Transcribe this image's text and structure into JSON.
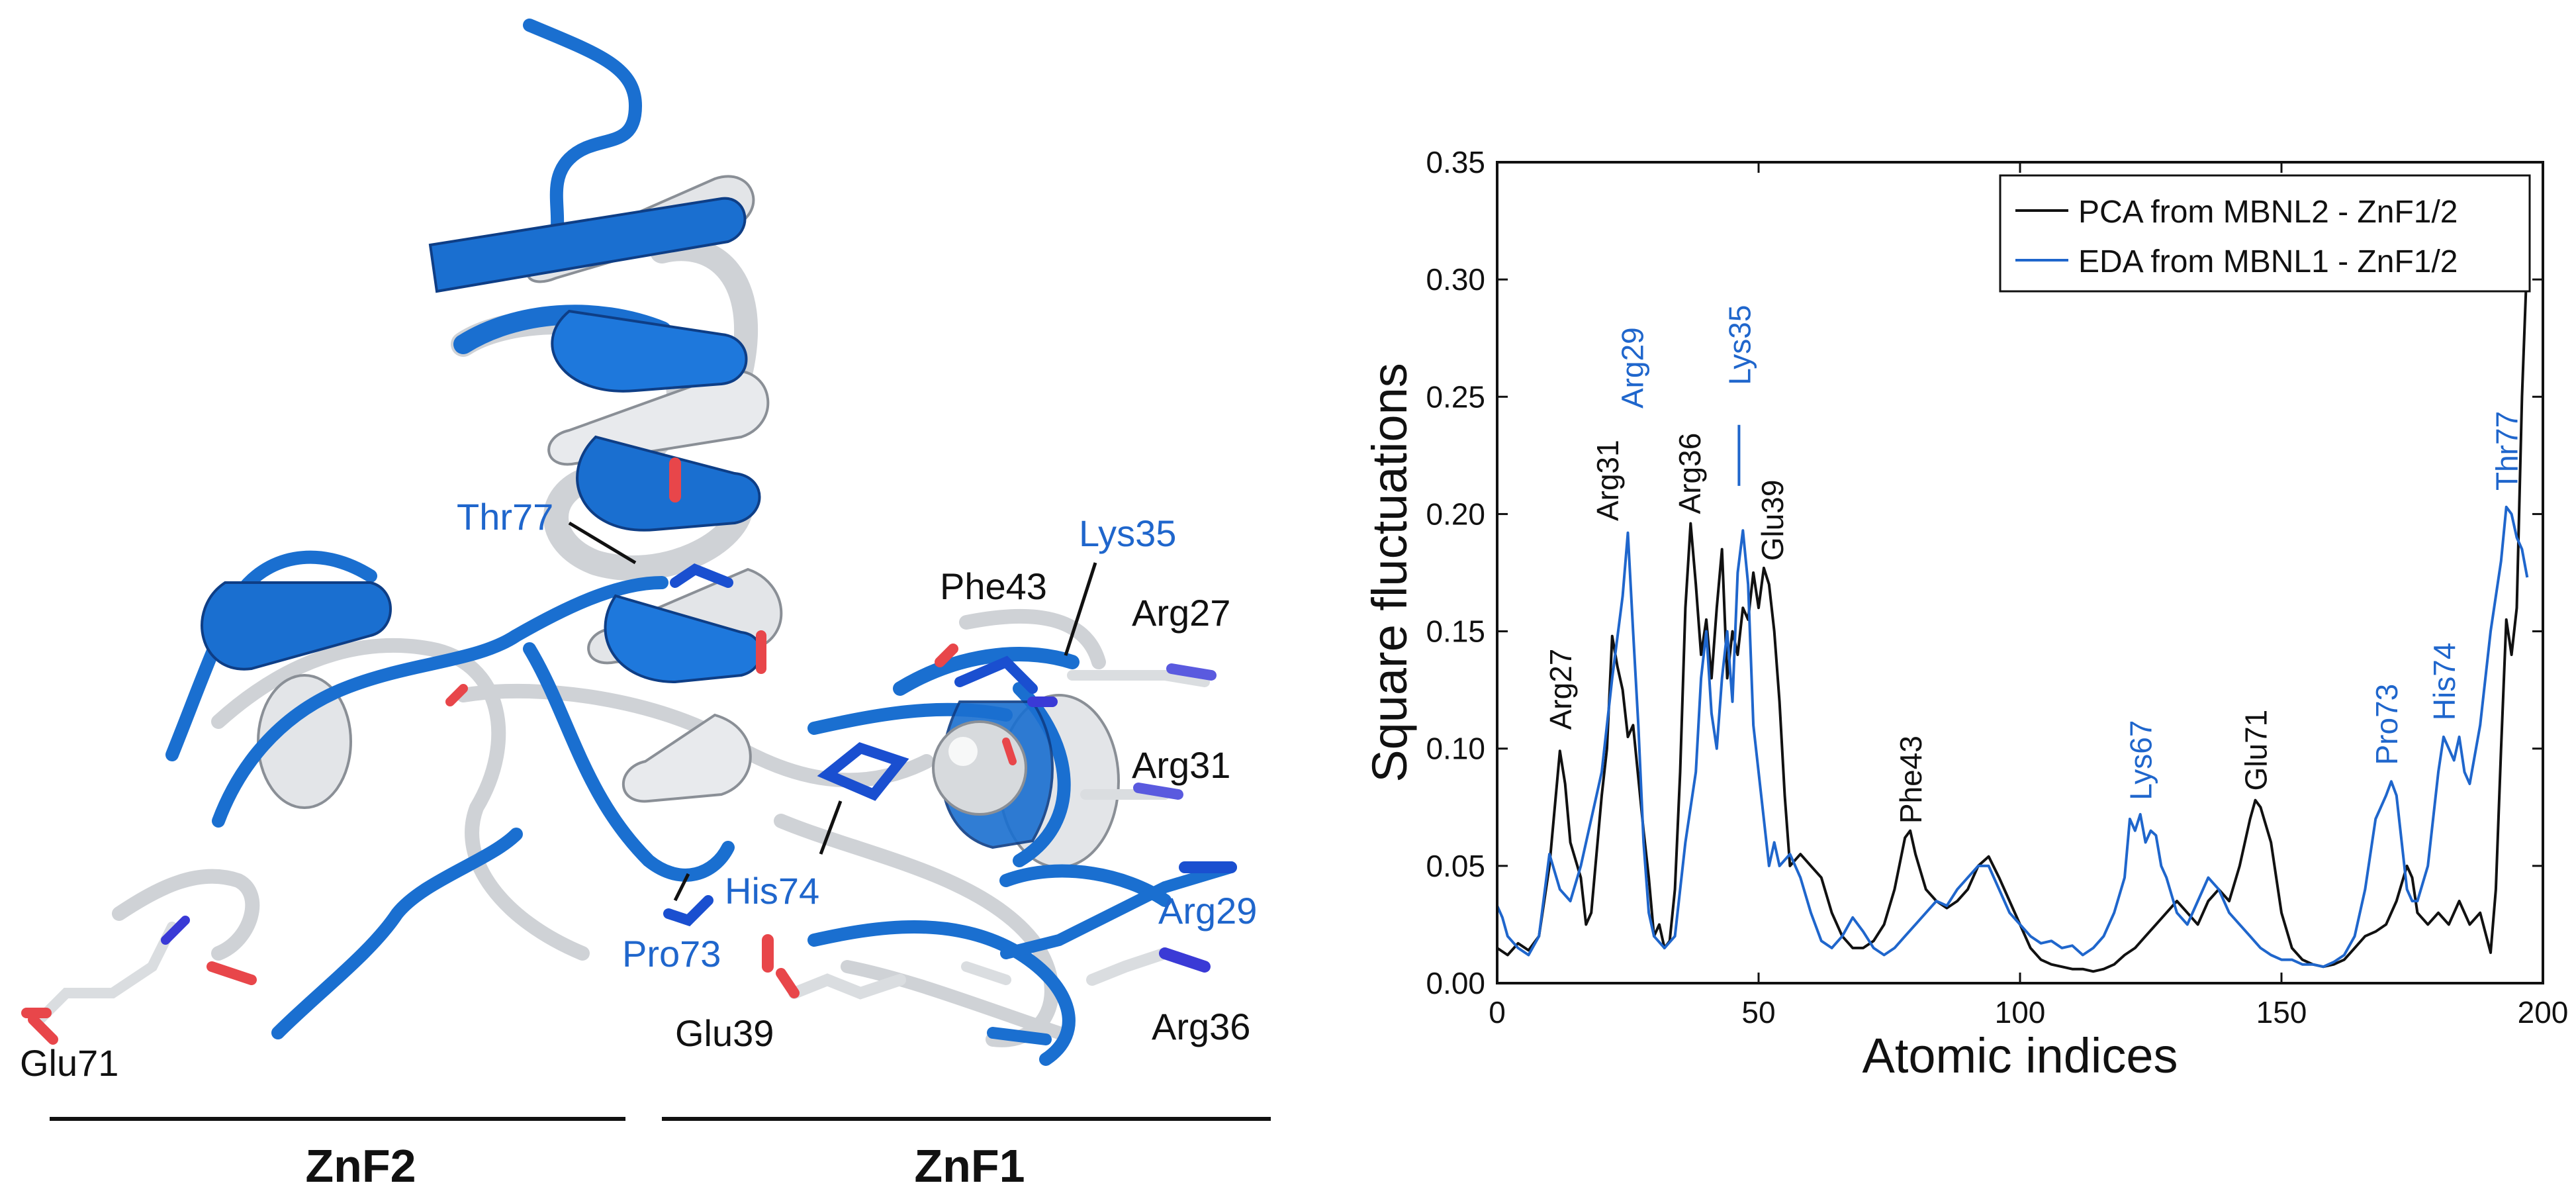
{
  "colors": {
    "black": "#111111",
    "blue": "#1f66cc",
    "ribbon_blue": "#1a6fd0",
    "ribbon_white": "#e3e5e8",
    "oxygen": "#e8464a",
    "nitrogen": "#3a3ad6"
  },
  "structure_panel": {
    "labels": {
      "thr77": "Thr77",
      "lys35": "Lys35",
      "phe43": "Phe43",
      "arg27": "Arg27",
      "arg31": "Arg31",
      "his74": "His74",
      "arg29": "Arg29",
      "pro73": "Pro73",
      "glu39": "Glu39",
      "arg36": "Arg36",
      "glu71": "Glu71"
    },
    "domains": {
      "znf2": "ZnF2",
      "znf1": "ZnF1"
    }
  },
  "chart_data": {
    "type": "line",
    "title": "",
    "xlabel": "Atomic indices",
    "ylabel": "Square fluctuations",
    "xlim": [
      0,
      200
    ],
    "ylim": [
      0,
      0.35
    ],
    "xticks": [
      "0",
      "50",
      "100",
      "150",
      "200"
    ],
    "yticks": [
      "0.00",
      "0.05",
      "0.10",
      "0.15",
      "0.20",
      "0.25",
      "0.30",
      "0.35"
    ],
    "grid": false,
    "legend_position": "top-right",
    "series": [
      {
        "name": "PCA from MBNL2 - ZnF1/2",
        "color": "#111111",
        "points": [
          [
            0,
            0.015
          ],
          [
            2,
            0.012
          ],
          [
            4,
            0.017
          ],
          [
            6,
            0.014
          ],
          [
            8,
            0.02
          ],
          [
            10,
            0.05
          ],
          [
            12,
            0.099
          ],
          [
            13,
            0.085
          ],
          [
            14,
            0.06
          ],
          [
            16,
            0.045
          ],
          [
            17,
            0.025
          ],
          [
            18,
            0.03
          ],
          [
            20,
            0.08
          ],
          [
            21,
            0.1
          ],
          [
            22,
            0.148
          ],
          [
            23,
            0.135
          ],
          [
            24,
            0.125
          ],
          [
            25,
            0.105
          ],
          [
            26,
            0.11
          ],
          [
            28,
            0.065
          ],
          [
            29,
            0.045
          ],
          [
            30,
            0.02
          ],
          [
            31,
            0.025
          ],
          [
            32,
            0.015
          ],
          [
            33,
            0.018
          ],
          [
            34,
            0.04
          ],
          [
            35,
            0.09
          ],
          [
            36,
            0.16
          ],
          [
            37,
            0.196
          ],
          [
            38,
            0.17
          ],
          [
            39,
            0.14
          ],
          [
            40,
            0.155
          ],
          [
            41,
            0.13
          ],
          [
            42,
            0.16
          ],
          [
            43,
            0.185
          ],
          [
            44,
            0.13
          ],
          [
            45,
            0.15
          ],
          [
            46,
            0.14
          ],
          [
            47,
            0.16
          ],
          [
            48,
            0.155
          ],
          [
            49,
            0.175
          ],
          [
            50,
            0.16
          ],
          [
            51,
            0.177
          ],
          [
            52,
            0.17
          ],
          [
            53,
            0.15
          ],
          [
            54,
            0.12
          ],
          [
            55,
            0.08
          ],
          [
            56,
            0.05
          ],
          [
            58,
            0.055
          ],
          [
            60,
            0.05
          ],
          [
            62,
            0.045
          ],
          [
            64,
            0.03
          ],
          [
            66,
            0.02
          ],
          [
            68,
            0.015
          ],
          [
            70,
            0.015
          ],
          [
            72,
            0.018
          ],
          [
            74,
            0.025
          ],
          [
            76,
            0.04
          ],
          [
            78,
            0.062
          ],
          [
            79,
            0.065
          ],
          [
            80,
            0.055
          ],
          [
            82,
            0.04
          ],
          [
            84,
            0.035
          ],
          [
            86,
            0.032
          ],
          [
            88,
            0.035
          ],
          [
            90,
            0.04
          ],
          [
            92,
            0.05
          ],
          [
            94,
            0.054
          ],
          [
            96,
            0.045
          ],
          [
            98,
            0.035
          ],
          [
            100,
            0.025
          ],
          [
            102,
            0.015
          ],
          [
            104,
            0.01
          ],
          [
            106,
            0.008
          ],
          [
            108,
            0.007
          ],
          [
            110,
            0.006
          ],
          [
            112,
            0.006
          ],
          [
            114,
            0.005
          ],
          [
            116,
            0.006
          ],
          [
            118,
            0.008
          ],
          [
            120,
            0.012
          ],
          [
            122,
            0.015
          ],
          [
            124,
            0.02
          ],
          [
            126,
            0.025
          ],
          [
            128,
            0.03
          ],
          [
            130,
            0.035
          ],
          [
            132,
            0.03
          ],
          [
            134,
            0.025
          ],
          [
            136,
            0.035
          ],
          [
            138,
            0.04
          ],
          [
            140,
            0.035
          ],
          [
            142,
            0.05
          ],
          [
            144,
            0.07
          ],
          [
            145,
            0.078
          ],
          [
            146,
            0.075
          ],
          [
            148,
            0.06
          ],
          [
            150,
            0.03
          ],
          [
            152,
            0.015
          ],
          [
            154,
            0.01
          ],
          [
            156,
            0.008
          ],
          [
            158,
            0.007
          ],
          [
            160,
            0.008
          ],
          [
            162,
            0.01
          ],
          [
            164,
            0.015
          ],
          [
            166,
            0.02
          ],
          [
            168,
            0.022
          ],
          [
            170,
            0.025
          ],
          [
            172,
            0.035
          ],
          [
            174,
            0.05
          ],
          [
            175,
            0.045
          ],
          [
            176,
            0.03
          ],
          [
            178,
            0.025
          ],
          [
            180,
            0.03
          ],
          [
            182,
            0.025
          ],
          [
            184,
            0.035
          ],
          [
            186,
            0.025
          ],
          [
            188,
            0.03
          ],
          [
            190,
            0.013
          ],
          [
            191,
            0.04
          ],
          [
            192,
            0.1
          ],
          [
            193,
            0.155
          ],
          [
            194,
            0.14
          ],
          [
            195,
            0.16
          ],
          [
            196,
            0.25
          ],
          [
            197,
            0.31
          ]
        ]
      },
      {
        "name": "EDA from MBNL1 - ZnF1/2",
        "color": "#1f66cc",
        "points": [
          [
            0,
            0.033
          ],
          [
            1,
            0.028
          ],
          [
            2,
            0.02
          ],
          [
            4,
            0.015
          ],
          [
            6,
            0.012
          ],
          [
            8,
            0.02
          ],
          [
            10,
            0.055
          ],
          [
            12,
            0.04
          ],
          [
            14,
            0.035
          ],
          [
            16,
            0.05
          ],
          [
            18,
            0.07
          ],
          [
            20,
            0.09
          ],
          [
            22,
            0.13
          ],
          [
            24,
            0.165
          ],
          [
            25,
            0.192
          ],
          [
            26,
            0.15
          ],
          [
            27,
            0.11
          ],
          [
            28,
            0.06
          ],
          [
            29,
            0.03
          ],
          [
            30,
            0.02
          ],
          [
            32,
            0.015
          ],
          [
            34,
            0.02
          ],
          [
            36,
            0.06
          ],
          [
            38,
            0.09
          ],
          [
            39,
            0.13
          ],
          [
            40,
            0.15
          ],
          [
            41,
            0.115
          ],
          [
            42,
            0.1
          ],
          [
            43,
            0.13
          ],
          [
            44,
            0.15
          ],
          [
            45,
            0.12
          ],
          [
            46,
            0.175
          ],
          [
            47,
            0.193
          ],
          [
            48,
            0.17
          ],
          [
            49,
            0.11
          ],
          [
            50,
            0.09
          ],
          [
            51,
            0.07
          ],
          [
            52,
            0.05
          ],
          [
            53,
            0.06
          ],
          [
            54,
            0.05
          ],
          [
            56,
            0.055
          ],
          [
            58,
            0.045
          ],
          [
            60,
            0.03
          ],
          [
            62,
            0.018
          ],
          [
            64,
            0.015
          ],
          [
            66,
            0.02
          ],
          [
            68,
            0.028
          ],
          [
            70,
            0.022
          ],
          [
            72,
            0.015
          ],
          [
            74,
            0.012
          ],
          [
            76,
            0.015
          ],
          [
            78,
            0.02
          ],
          [
            80,
            0.025
          ],
          [
            82,
            0.03
          ],
          [
            84,
            0.035
          ],
          [
            86,
            0.033
          ],
          [
            88,
            0.04
          ],
          [
            90,
            0.045
          ],
          [
            92,
            0.05
          ],
          [
            94,
            0.05
          ],
          [
            96,
            0.04
          ],
          [
            98,
            0.03
          ],
          [
            100,
            0.025
          ],
          [
            102,
            0.02
          ],
          [
            104,
            0.017
          ],
          [
            106,
            0.018
          ],
          [
            108,
            0.015
          ],
          [
            110,
            0.016
          ],
          [
            112,
            0.012
          ],
          [
            114,
            0.015
          ],
          [
            116,
            0.02
          ],
          [
            118,
            0.03
          ],
          [
            120,
            0.045
          ],
          [
            121,
            0.07
          ],
          [
            122,
            0.065
          ],
          [
            123,
            0.072
          ],
          [
            124,
            0.06
          ],
          [
            125,
            0.065
          ],
          [
            126,
            0.063
          ],
          [
            127,
            0.05
          ],
          [
            128,
            0.045
          ],
          [
            130,
            0.03
          ],
          [
            132,
            0.025
          ],
          [
            134,
            0.035
          ],
          [
            136,
            0.045
          ],
          [
            138,
            0.04
          ],
          [
            140,
            0.03
          ],
          [
            142,
            0.025
          ],
          [
            144,
            0.02
          ],
          [
            146,
            0.015
          ],
          [
            148,
            0.012
          ],
          [
            150,
            0.01
          ],
          [
            152,
            0.01
          ],
          [
            154,
            0.008
          ],
          [
            156,
            0.008
          ],
          [
            158,
            0.007
          ],
          [
            160,
            0.009
          ],
          [
            162,
            0.012
          ],
          [
            164,
            0.02
          ],
          [
            166,
            0.04
          ],
          [
            168,
            0.07
          ],
          [
            170,
            0.08
          ],
          [
            171,
            0.086
          ],
          [
            172,
            0.08
          ],
          [
            173,
            0.06
          ],
          [
            174,
            0.04
          ],
          [
            175,
            0.035
          ],
          [
            176,
            0.035
          ],
          [
            178,
            0.05
          ],
          [
            180,
            0.09
          ],
          [
            181,
            0.105
          ],
          [
            182,
            0.1
          ],
          [
            183,
            0.095
          ],
          [
            184,
            0.105
          ],
          [
            185,
            0.09
          ],
          [
            186,
            0.085
          ],
          [
            188,
            0.11
          ],
          [
            190,
            0.15
          ],
          [
            192,
            0.18
          ],
          [
            193,
            0.203
          ],
          [
            194,
            0.2
          ],
          [
            195,
            0.19
          ],
          [
            196,
            0.185
          ],
          [
            197,
            0.173
          ]
        ]
      }
    ],
    "annotations": [
      {
        "text": "Arg27",
        "x": 12,
        "color": "black"
      },
      {
        "text": "Arg31",
        "x": 22,
        "color": "black"
      },
      {
        "text": "Arg29",
        "x": 25,
        "color": "blue"
      },
      {
        "text": "Arg36",
        "x": 38,
        "color": "black"
      },
      {
        "text": "Lys35",
        "x": 46,
        "color": "blue"
      },
      {
        "text": "Glu39",
        "x": 51,
        "color": "black"
      },
      {
        "text": "Phe43",
        "x": 79,
        "color": "black"
      },
      {
        "text": "Lys67",
        "x": 123,
        "color": "blue"
      },
      {
        "text": "Glu71",
        "x": 145,
        "color": "black"
      },
      {
        "text": "Pro73",
        "x": 170,
        "color": "blue"
      },
      {
        "text": "His74",
        "x": 181,
        "color": "blue"
      },
      {
        "text": "Thr77",
        "x": 193,
        "color": "blue"
      }
    ]
  }
}
